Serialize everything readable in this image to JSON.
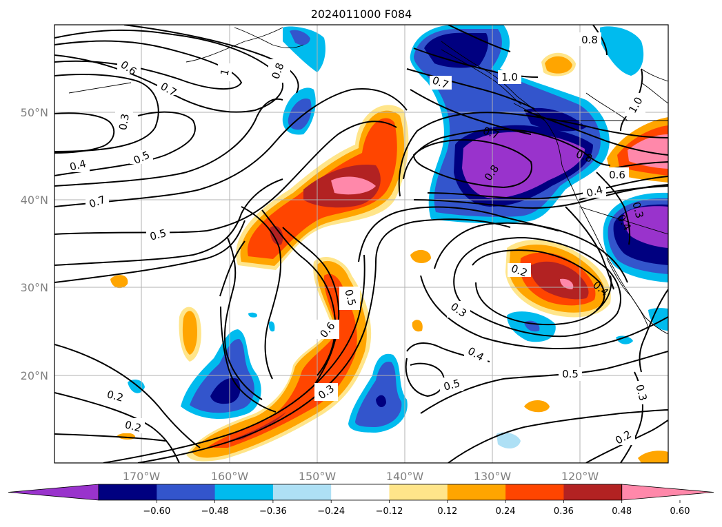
{
  "title": "2024011000 F084",
  "lon_labels": [
    "170°W",
    "160°W",
    "150°W",
    "140°W",
    "130°W",
    "120°W"
  ],
  "lat_labels": [
    "50°N",
    "40°N",
    "30°N",
    "20°N"
  ],
  "colorbar": {
    "colors": [
      "#9933cc",
      "#000080",
      "#3355cc",
      "#00bbee",
      "#aee0f5",
      "#ffffff",
      "#ffe58a",
      "#ffa500",
      "#ff4500",
      "#b22222",
      "#ff88aa"
    ],
    "ticks": [
      "−0.60",
      "−0.48",
      "−0.36",
      "−0.24",
      "−0.12",
      "0.12",
      "0.24",
      "0.36",
      "0.48",
      "0.60"
    ]
  },
  "contour_labels": [
    "0.6",
    "0.7",
    "0.8",
    "1",
    "0.3",
    "0.4",
    "0.5",
    "0.7",
    "0.5",
    "1.0",
    "0.7",
    "0.8",
    "1.0",
    "0.7",
    "0.8",
    "0.8",
    "0.6",
    "0.4",
    "0.3",
    "0.4",
    "0.2",
    "0.4",
    "0.3",
    "0.5",
    "0.6",
    "0.5",
    "0.4",
    "0.5",
    "0.3",
    "0.2",
    "0.2",
    "0.2",
    "0.3"
  ]
}
